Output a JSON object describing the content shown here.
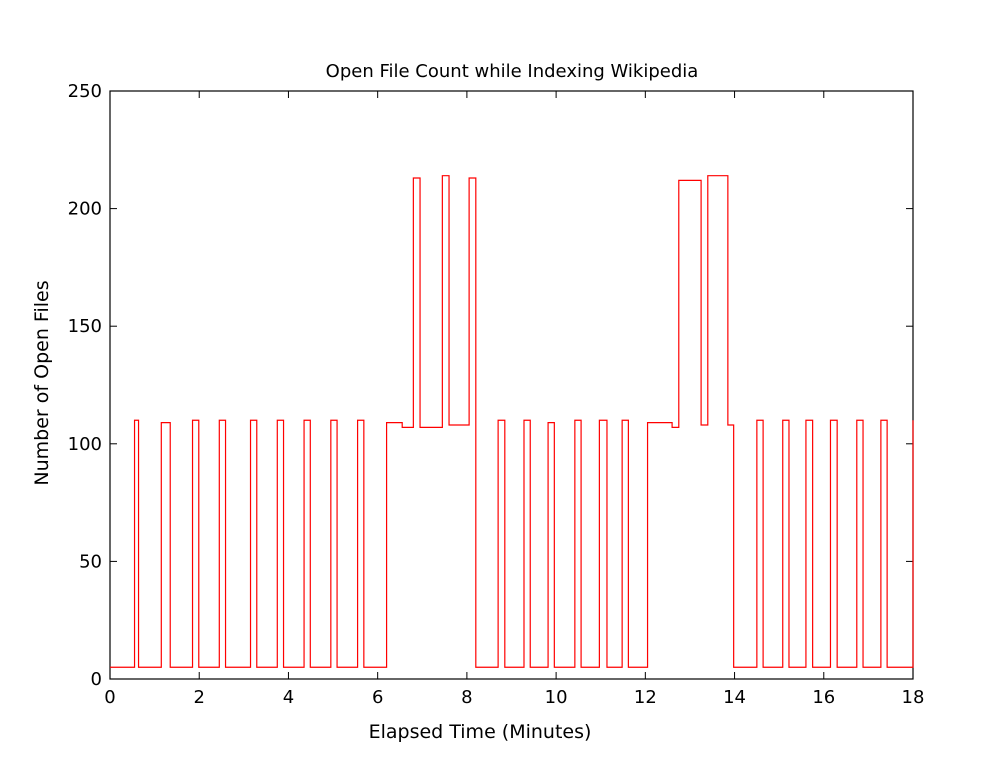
{
  "chart_data": {
    "type": "line",
    "title": "Open File Count while Indexing Wikipedia",
    "xlabel": "Elapsed Time (Minutes)",
    "ylabel": "Number of Open Files",
    "xlim": [
      0,
      18
    ],
    "ylim": [
      0,
      250
    ],
    "xticks": [
      0,
      2,
      4,
      6,
      8,
      10,
      12,
      14,
      16,
      18
    ],
    "yticks": [
      0,
      50,
      100,
      150,
      200,
      250
    ],
    "grid": false,
    "legend": "none",
    "line_color": "#ff0000",
    "axes_color": "#000000",
    "series": [
      {
        "x": [
          0,
          0.55,
          0.55,
          0.64,
          0.64,
          1.15,
          1.15,
          1.35,
          1.35,
          1.85,
          1.85,
          1.99,
          1.99,
          2.45,
          2.45,
          2.59,
          2.59,
          3.15,
          3.15,
          3.29,
          3.29,
          3.75,
          3.75,
          3.89,
          3.89,
          4.35,
          4.35,
          4.49,
          4.49,
          4.95,
          4.95,
          5.09,
          5.09,
          5.55,
          5.55,
          5.69,
          5.69,
          6.2,
          6.2,
          6.55,
          6.55,
          6.8,
          6.8,
          6.95,
          6.95,
          7.45,
          7.45,
          7.6,
          7.6,
          8.05,
          8.05,
          8.2,
          8.2,
          8.7,
          8.7,
          8.85,
          8.85,
          9.28,
          9.28,
          9.42,
          9.42,
          9.82,
          9.82,
          9.96,
          9.96,
          10.42,
          10.42,
          10.56,
          10.56,
          10.97,
          10.97,
          11.14,
          11.14,
          11.48,
          11.48,
          11.62,
          11.62,
          12.05,
          12.05,
          12.6,
          12.6,
          12.75,
          12.75,
          13.25,
          13.25,
          13.4,
          13.4,
          13.85,
          13.85,
          13.98,
          13.98,
          14.5,
          14.5,
          14.64,
          14.64,
          15.08,
          15.08,
          15.22,
          15.22,
          15.6,
          15.6,
          15.75,
          15.75,
          16.15,
          16.15,
          16.3,
          16.3,
          16.74,
          16.74,
          16.88,
          16.88,
          17.28,
          17.28,
          17.42,
          17.42,
          18,
          18
        ],
        "y": [
          5,
          5,
          110,
          110,
          5,
          5,
          109,
          109,
          5,
          5,
          110,
          110,
          5,
          5,
          110,
          110,
          5,
          5,
          110,
          110,
          5,
          5,
          110,
          110,
          5,
          5,
          110,
          110,
          5,
          5,
          110,
          110,
          5,
          5,
          110,
          110,
          5,
          5,
          109,
          109,
          107,
          107,
          213,
          213,
          107,
          107,
          214,
          214,
          108,
          108,
          213,
          213,
          5,
          5,
          110,
          110,
          5,
          5,
          110,
          110,
          5,
          5,
          109,
          109,
          5,
          5,
          110,
          110,
          5,
          5,
          110,
          110,
          5,
          5,
          110,
          110,
          5,
          5,
          109,
          109,
          107,
          107,
          212,
          212,
          108,
          108,
          214,
          214,
          108,
          108,
          5,
          5,
          110,
          110,
          5,
          5,
          110,
          110,
          5,
          5,
          110,
          110,
          5,
          5,
          110,
          110,
          5,
          5,
          110,
          110,
          5,
          5,
          110,
          110,
          5,
          5,
          110
        ]
      }
    ]
  }
}
